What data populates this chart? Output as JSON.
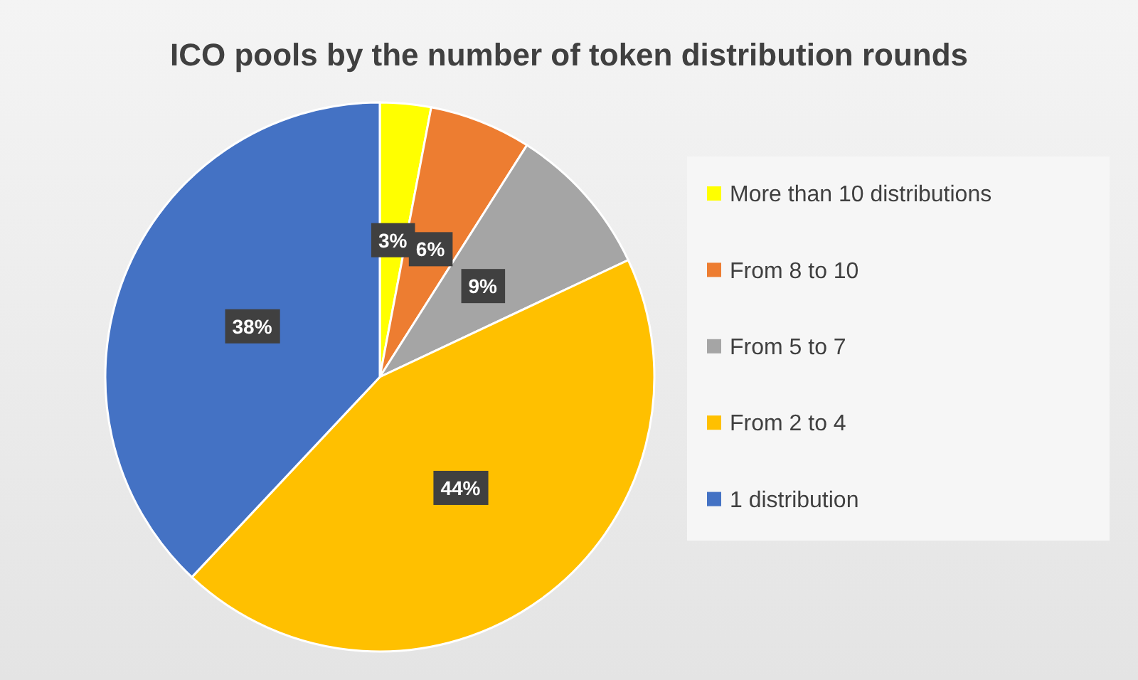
{
  "chart_data": {
    "type": "pie",
    "title": "ICO pools by the number of token distribution rounds",
    "categories": [
      "More than 10 distributions",
      "From 8 to 10",
      "From 5 to 7",
      "From 2 to 4",
      "1 distribution"
    ],
    "values": [
      3,
      6,
      9,
      44,
      38
    ],
    "colors": [
      "#ffff00",
      "#ed7d31",
      "#a5a5a5",
      "#ffc000",
      "#4472c4"
    ],
    "value_labels": [
      "3%",
      "6%",
      "9%",
      "44%",
      "38%"
    ],
    "legend": "right"
  }
}
